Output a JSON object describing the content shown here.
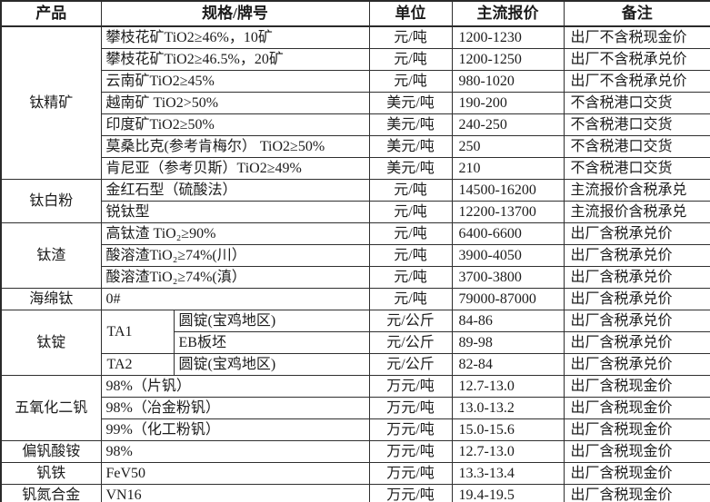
{
  "header": {
    "product": "产品",
    "spec": "规格/牌号",
    "unit": "单位",
    "price": "主流报价",
    "note": "备注"
  },
  "groups": [
    {
      "product": "钛精矿",
      "rows": [
        {
          "spec": "攀枝花矿TiO2≥46%，10矿",
          "unit": "元/吨",
          "price": "1200-1230",
          "note": "出厂不含税现金价"
        },
        {
          "spec": "攀枝花矿TiO2≥46.5%，20矿",
          "unit": "元/吨",
          "price": "1200-1250",
          "note": "出厂不含税承兑价"
        },
        {
          "spec": "云南矿TiO2≥45%",
          "unit": "元/吨",
          "price": "980-1020",
          "note": "出厂不含税承兑价"
        },
        {
          "spec": "越南矿 TiO2>50%",
          "unit": "美元/吨",
          "price": "190-200",
          "note": "不含税港口交货"
        },
        {
          "spec": "印度矿TiO2≥50%",
          "unit": "美元/吨",
          "price": "240-250",
          "note": "不含税港口交货"
        },
        {
          "spec": "莫桑比克(参考肯梅尔） TiO2≥50%",
          "unit": "美元/吨",
          "price": "250",
          "note": "不含税港口交货"
        },
        {
          "spec": "肯尼亚（参考贝斯）TiO2≥49%",
          "unit": "美元/吨",
          "price": "210",
          "note": "不含税港口交货"
        }
      ]
    },
    {
      "product": "钛白粉",
      "rows": [
        {
          "spec": "金红石型（硫酸法）",
          "unit": "元/吨",
          "price": "14500-16200",
          "note": "主流报价含税承兑"
        },
        {
          "spec": "锐钛型",
          "unit": "元/吨",
          "price": "12200-13700",
          "note": "主流报价含税承兑"
        }
      ]
    },
    {
      "product": "钛渣",
      "rows": [
        {
          "spec": "高钛渣 TiO₂≥90%",
          "unit": "元/吨",
          "price": "6400-6600",
          "note": "出厂含税承兑价"
        },
        {
          "spec": "酸溶渣TiO₂≥74%(川）",
          "unit": "元/吨",
          "price": "3900-4050",
          "note": "出厂含税承兑价"
        },
        {
          "spec": "酸溶渣TiO₂≥74%(滇）",
          "unit": "元/吨",
          "price": "3700-3800",
          "note": "出厂含税承兑价"
        }
      ]
    },
    {
      "product": "海绵钛",
      "rows": [
        {
          "spec": "0#",
          "unit": "元/吨",
          "price": "79000-87000",
          "note": "出厂含税承兑价"
        }
      ]
    },
    {
      "product": "钛锭",
      "rows": [
        {
          "grade": "TA1",
          "spec": "圆锭(宝鸡地区)",
          "unit": "元/公斤",
          "price": "84-86",
          "note": "出厂含税承兑价"
        },
        {
          "spec": "EB板坯",
          "unit": "元/公斤",
          "price": "89-98",
          "note": "出厂含税承兑价"
        },
        {
          "grade": "TA2",
          "spec": "圆锭(宝鸡地区)",
          "unit": "元/公斤",
          "price": "82-84",
          "note": "出厂含税承兑价"
        }
      ]
    },
    {
      "product": "五氧化二钒",
      "rows": [
        {
          "spec": "98%（片钒）",
          "unit": "万元/吨",
          "price": "12.7-13.0",
          "note": "出厂含税现金价"
        },
        {
          "spec": "98%（冶金粉钒）",
          "unit": "万元/吨",
          "price": "13.0-13.2",
          "note": "出厂含税现金价"
        },
        {
          "spec": "99%（化工粉钒）",
          "unit": "万元/吨",
          "price": "15.0-15.6",
          "note": "出厂含税现金价"
        }
      ]
    },
    {
      "product": "偏钒酸铵",
      "rows": [
        {
          "spec": "98%",
          "unit": "万元/吨",
          "price": "12.7-13.0",
          "note": "出厂含税现金价"
        }
      ]
    },
    {
      "product": "钒铁",
      "rows": [
        {
          "spec": "FeV50",
          "unit": "万元/吨",
          "price": "13.3-13.4",
          "note": "出厂含税现金价"
        }
      ]
    },
    {
      "product": "钒氮合金",
      "rows": [
        {
          "spec": "VN16",
          "unit": "万元/吨",
          "price": "19.4-19.5",
          "note": "出厂含税现金价"
        }
      ]
    }
  ]
}
